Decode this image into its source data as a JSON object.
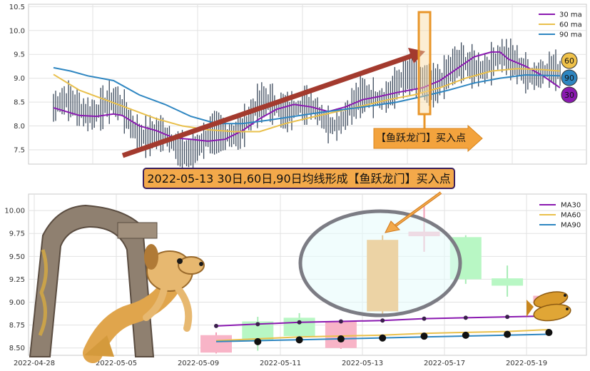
{
  "chart_data": [
    {
      "type": "line",
      "panel": "top",
      "ylim": [
        7.2,
        10.55
      ],
      "y_ticks": [
        "7.5",
        "8.0",
        "8.5",
        "9.0",
        "9.5",
        "10.0",
        "10.5"
      ],
      "grid": true,
      "legend_position": "top-right",
      "series": [
        {
          "name": "30 ma",
          "color": "#8a19b0",
          "points": [
            [
              0,
              8.38
            ],
            [
              6,
              8.22
            ],
            [
              10,
              8.2
            ],
            [
              14,
              8.25
            ],
            [
              16,
              8.22
            ],
            [
              20,
              8.0
            ],
            [
              24,
              7.9
            ],
            [
              28,
              7.75
            ],
            [
              32,
              7.72
            ],
            [
              36,
              7.68
            ],
            [
              40,
              7.72
            ],
            [
              44,
              7.9
            ],
            [
              48,
              8.15
            ],
            [
              52,
              8.35
            ],
            [
              56,
              8.45
            ],
            [
              60,
              8.4
            ],
            [
              64,
              8.3
            ],
            [
              68,
              8.4
            ],
            [
              72,
              8.55
            ],
            [
              76,
              8.62
            ],
            [
              80,
              8.7
            ],
            [
              83,
              8.75
            ],
            [
              86,
              8.8
            ],
            [
              90,
              8.95
            ],
            [
              94,
              9.2
            ],
            [
              98,
              9.45
            ],
            [
              102,
              9.55
            ],
            [
              104,
              9.55
            ],
            [
              106,
              9.4
            ],
            [
              110,
              9.25
            ],
            [
              114,
              9.05
            ],
            [
              118,
              8.8
            ]
          ]
        },
        {
          "name": "60 ma",
          "color": "#e9c04c",
          "points": [
            [
              0,
              9.08
            ],
            [
              6,
              8.75
            ],
            [
              12,
              8.55
            ],
            [
              18,
              8.35
            ],
            [
              24,
              8.15
            ],
            [
              30,
              8.0
            ],
            [
              36,
              7.92
            ],
            [
              42,
              7.88
            ],
            [
              48,
              7.88
            ],
            [
              54,
              8.05
            ],
            [
              60,
              8.18
            ],
            [
              66,
              8.3
            ],
            [
              72,
              8.42
            ],
            [
              78,
              8.55
            ],
            [
              84,
              8.65
            ],
            [
              90,
              8.8
            ],
            [
              96,
              9.0
            ],
            [
              102,
              9.15
            ],
            [
              108,
              9.2
            ],
            [
              114,
              9.18
            ],
            [
              118,
              9.15
            ]
          ]
        },
        {
          "name": "90 ma",
          "color": "#2e86c1",
          "points": [
            [
              0,
              9.22
            ],
            [
              4,
              9.15
            ],
            [
              8,
              9.05
            ],
            [
              14,
              8.95
            ],
            [
              20,
              8.65
            ],
            [
              26,
              8.45
            ],
            [
              32,
              8.2
            ],
            [
              38,
              8.05
            ],
            [
              44,
              8.05
            ],
            [
              50,
              8.12
            ],
            [
              56,
              8.2
            ],
            [
              62,
              8.28
            ],
            [
              68,
              8.35
            ],
            [
              74,
              8.42
            ],
            [
              80,
              8.5
            ],
            [
              86,
              8.62
            ],
            [
              92,
              8.75
            ],
            [
              98,
              8.9
            ],
            [
              104,
              9.0
            ],
            [
              110,
              9.07
            ],
            [
              118,
              9.05
            ]
          ]
        }
      ],
      "badges": [
        "60",
        "90",
        "30"
      ],
      "annotation": "【鱼跃龙门】买入点"
    },
    {
      "type": "candlestick",
      "panel": "bottom",
      "title": "2022-05-13 30日,60日,90日均线形成【鱼跃龙门】买入点",
      "ylim": [
        8.42,
        10.18
      ],
      "y_ticks": [
        "8.50",
        "8.75",
        "9.00",
        "9.25",
        "9.50",
        "9.75",
        "10.00"
      ],
      "x_ticks": [
        "2022-04-28",
        "2022-05-05",
        "2022-05-09",
        "2022-05-11",
        "2022-05-13",
        "2022-05-17",
        "2022-05-19"
      ],
      "grid": true,
      "legend_position": "top-right",
      "candles": [
        {
          "x": 0,
          "open": 8.64,
          "close": 8.45,
          "high": 8.67,
          "low": 8.44
        },
        {
          "x": 1,
          "open": 8.58,
          "close": 8.79,
          "high": 8.84,
          "low": 8.47
        },
        {
          "x": 2,
          "open": 8.63,
          "close": 8.83,
          "high": 8.88,
          "low": 8.6
        },
        {
          "x": 3,
          "open": 8.79,
          "close": 8.5,
          "high": 8.81,
          "low": 8.49
        },
        {
          "x": 4,
          "open": 8.9,
          "close": 9.68,
          "high": 9.73,
          "low": 8.86
        },
        {
          "x": 5,
          "open": 9.77,
          "close": 9.72,
          "high": 10.05,
          "low": 9.55
        },
        {
          "x": 6,
          "open": 9.25,
          "close": 9.71,
          "high": 9.73,
          "low": 9.2
        },
        {
          "x": 7,
          "open": 9.18,
          "close": 9.26,
          "high": 9.4,
          "low": 9.06
        },
        {
          "x": 8,
          "open": 9.07,
          "close": 8.99,
          "high": 9.09,
          "low": 8.97
        }
      ],
      "series": [
        {
          "name": "MA30",
          "color": "#8a19b0",
          "values": [
            8.74,
            8.76,
            8.78,
            8.79,
            8.8,
            8.82,
            8.83,
            8.84,
            8.85
          ]
        },
        {
          "name": "MA60",
          "color": "#e9c04c",
          "values": [
            8.58,
            8.6,
            8.62,
            8.63,
            8.64,
            8.66,
            8.67,
            8.68,
            8.7
          ]
        },
        {
          "name": "MA90",
          "color": "#2e86c1",
          "values": [
            8.57,
            8.58,
            8.59,
            8.6,
            8.61,
            8.62,
            8.63,
            8.64,
            8.65
          ]
        }
      ]
    }
  ]
}
